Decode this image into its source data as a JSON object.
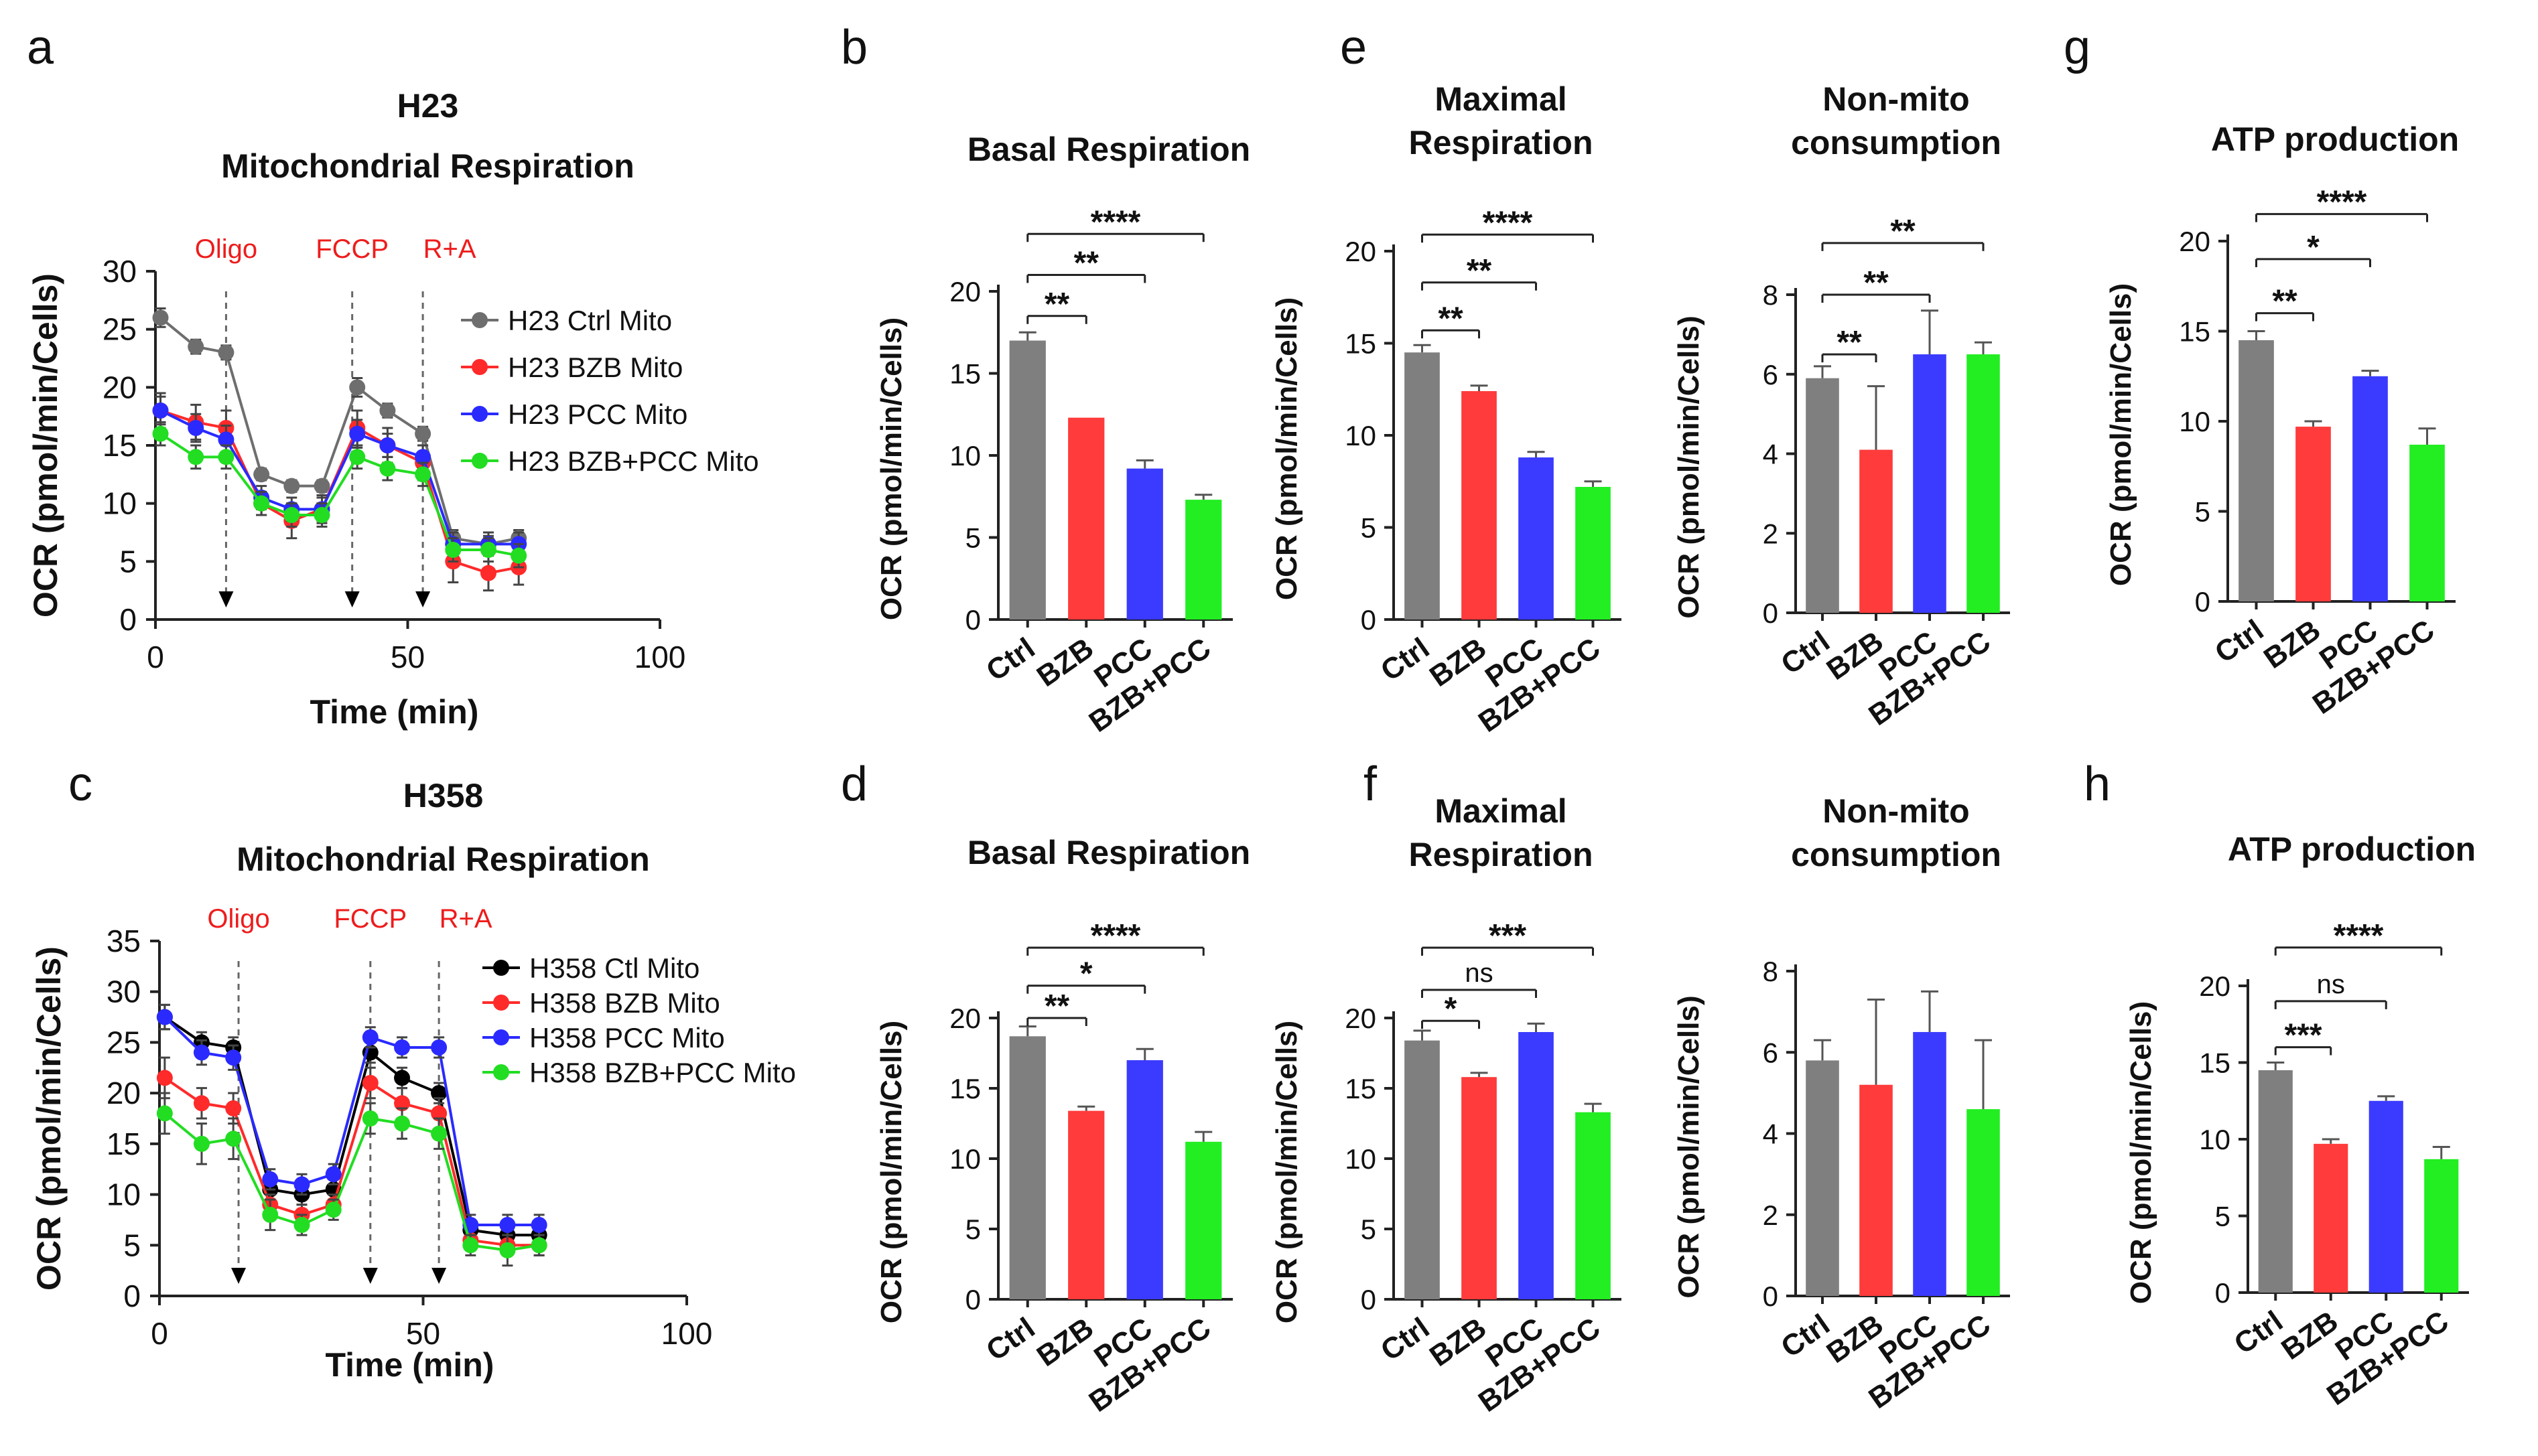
{
  "palette": {
    "gray": "#7f7f7f",
    "red": "#ff3b3b",
    "blue": "#3b3bff",
    "green": "#22ee22",
    "black": "#111111",
    "annotation": "#ee1c1c"
  },
  "chart_data": [
    {
      "id": "a",
      "panel": "a",
      "type": "line",
      "title": "H23",
      "subtitle": "Mitochondrial Respiration",
      "xlabel": "Time (min)",
      "ylabel": "OCR (pmol/min/Cells)",
      "xlim": [
        0,
        100
      ],
      "ylim": [
        0,
        30
      ],
      "xticks": [
        0,
        50,
        100
      ],
      "yticks": [
        0,
        5,
        10,
        15,
        20,
        25,
        30
      ],
      "injections": [
        {
          "label": "Oligo",
          "x": 14
        },
        {
          "label": "FCCP",
          "x": 39
        },
        {
          "label": "R+A",
          "x": 53
        }
      ],
      "x": [
        1,
        8,
        14,
        21,
        27,
        33,
        40,
        46,
        53,
        59,
        66,
        72
      ],
      "series": [
        {
          "name": "H23 Ctrl Mito",
          "color": "#6e6e6e",
          "values": [
            26,
            23.5,
            23,
            12.5,
            11.5,
            11.5,
            20,
            18,
            16,
            7,
            6.5,
            7
          ],
          "errors": [
            0.8,
            0.6,
            0.6,
            0.5,
            0.5,
            0.5,
            0.8,
            0.6,
            0.6,
            0.7,
            0.7,
            0.7
          ]
        },
        {
          "name": "H23 BZB Mito",
          "color": "#ff2a2a",
          "values": [
            18,
            17,
            16.5,
            10,
            8.5,
            9.5,
            16.5,
            15,
            13.5,
            5,
            4,
            4.5
          ],
          "errors": [
            1.5,
            1.5,
            1.5,
            1,
            1.5,
            1.2,
            1.5,
            1.5,
            1.5,
            1.8,
            1.5,
            1.5
          ]
        },
        {
          "name": "H23 PCC Mito",
          "color": "#2a2aff",
          "values": [
            18,
            16.5,
            15.5,
            10.5,
            9.5,
            9.5,
            16,
            15,
            14,
            6.5,
            6.5,
            6.5
          ],
          "errors": [
            1.2,
            1.2,
            1.2,
            1,
            1,
            1,
            1.2,
            1,
            1,
            1,
            1,
            1
          ]
        },
        {
          "name": "H23 BZB+PCC Mito",
          "color": "#22dd22",
          "values": [
            16,
            14,
            14,
            10,
            9,
            9,
            14,
            13,
            12.5,
            6,
            6,
            5.5
          ],
          "errors": [
            1,
            1,
            1,
            1,
            1,
            1,
            1,
            1,
            1,
            1,
            1,
            1
          ]
        }
      ]
    },
    {
      "id": "c",
      "panel": "c",
      "type": "line",
      "title": "H358",
      "subtitle": "Mitochondrial Respiration",
      "xlabel": "Time (min)",
      "ylabel": "OCR (pmol/min/Cells)",
      "xlim": [
        0,
        100
      ],
      "ylim": [
        0,
        35
      ],
      "xticks": [
        0,
        50,
        100
      ],
      "yticks": [
        0,
        5,
        10,
        15,
        20,
        25,
        30,
        35
      ],
      "injections": [
        {
          "label": "Oligo",
          "x": 15
        },
        {
          "label": "FCCP",
          "x": 40
        },
        {
          "label": "R+A",
          "x": 53
        }
      ],
      "x": [
        1,
        8,
        14,
        21,
        27,
        33,
        40,
        46,
        53,
        59,
        66,
        72
      ],
      "series": [
        {
          "name": "H358 Ctl Mito",
          "color": "#000000",
          "values": [
            27.5,
            25,
            24.5,
            10.5,
            10,
            10.5,
            24,
            21.5,
            20,
            6.5,
            6,
            6
          ],
          "errors": [
            1.2,
            1,
            1,
            1,
            1,
            1,
            1,
            1,
            1,
            1,
            1,
            1
          ]
        },
        {
          "name": "H358 BZB Mito",
          "color": "#ff2a2a",
          "values": [
            21.5,
            19,
            18.5,
            9,
            8,
            9,
            21,
            19,
            18,
            5.5,
            5,
            5
          ],
          "errors": [
            2,
            1.5,
            1.5,
            1,
            1,
            1,
            1.5,
            1.5,
            1.5,
            1,
            1,
            1
          ]
        },
        {
          "name": "H358 PCC Mito",
          "color": "#2a2aff",
          "values": [
            27.5,
            24,
            23.5,
            11.5,
            11,
            12,
            25.5,
            24.5,
            24.5,
            7,
            7,
            7
          ],
          "errors": [
            1.2,
            1.2,
            1.2,
            1,
            1,
            1,
            1,
            1,
            1,
            1,
            1,
            1
          ]
        },
        {
          "name": "H358 BZB+PCC Mito",
          "color": "#22dd22",
          "values": [
            18,
            15,
            15.5,
            8,
            7,
            8.5,
            17.5,
            17,
            16,
            5,
            4.5,
            5
          ],
          "errors": [
            2,
            2,
            2,
            1.5,
            1,
            1,
            1.5,
            1.5,
            1.5,
            1,
            1.5,
            1
          ]
        }
      ]
    },
    {
      "id": "b",
      "panel": "b",
      "type": "bar",
      "title": "Basal Respiration",
      "ylabel": "OCR (pmol/min/Cells)",
      "categories": [
        "Ctrl",
        "BZB",
        "PCC",
        "BZB+PCC"
      ],
      "values": [
        17,
        12.3,
        9.2,
        7.3
      ],
      "errors": [
        0.5,
        0,
        0.5,
        0.3
      ],
      "ylim": [
        0,
        20
      ],
      "yticks": [
        0,
        5,
        10,
        15,
        20
      ],
      "significance": [
        {
          "from": 0,
          "to": 1,
          "label": "**",
          "y": 18.5
        },
        {
          "from": 0,
          "to": 2,
          "label": "**",
          "y": 21
        },
        {
          "from": 0,
          "to": 3,
          "label": "****",
          "y": 23.5
        }
      ]
    },
    {
      "id": "e1",
      "panel": "e",
      "type": "bar",
      "title": "Maximal Respiration",
      "ylabel": "OCR (pmol/min/Cells)",
      "categories": [
        "Ctrl",
        "BZB",
        "PCC",
        "BZB+PCC"
      ],
      "values": [
        14.5,
        12.4,
        8.8,
        7.2
      ],
      "errors": [
        0.4,
        0.3,
        0.3,
        0.3
      ],
      "ylim": [
        0,
        20
      ],
      "yticks": [
        0,
        5,
        10,
        15,
        20
      ],
      "significance": [
        {
          "from": 0,
          "to": 1,
          "label": "**",
          "y": 15.7
        },
        {
          "from": 0,
          "to": 2,
          "label": "**",
          "y": 18.3
        },
        {
          "from": 0,
          "to": 3,
          "label": "****",
          "y": 20.9
        }
      ]
    },
    {
      "id": "e2",
      "panel": "e",
      "type": "bar",
      "title": "Non-mito consumption",
      "ylabel": "OCR (pmol/min/Cells)",
      "categories": [
        "Ctrl",
        "BZB",
        "PCC",
        "BZB+PCC"
      ],
      "values": [
        5.9,
        4.1,
        6.5,
        6.5
      ],
      "errors": [
        0.3,
        1.6,
        1.1,
        0.3
      ],
      "ylim": [
        0,
        8
      ],
      "yticks": [
        0,
        2,
        4,
        6,
        8
      ],
      "significance": [
        {
          "from": 0,
          "to": 1,
          "label": "**",
          "y": 6.5
        },
        {
          "from": 0,
          "to": 2,
          "label": "**",
          "y": 8
        },
        {
          "from": 0,
          "to": 3,
          "label": "**",
          "y": 9.3
        }
      ]
    },
    {
      "id": "g",
      "panel": "g",
      "type": "bar",
      "title": "ATP production",
      "ylabel": "OCR (pmol/min/Cells)",
      "categories": [
        "Ctrl",
        "BZB",
        "PCC",
        "BZB+PCC"
      ],
      "values": [
        14.5,
        9.7,
        12.5,
        8.7
      ],
      "errors": [
        0.5,
        0.3,
        0.3,
        0.9
      ],
      "ylim": [
        0,
        20
      ],
      "yticks": [
        0,
        5,
        10,
        15,
        20
      ],
      "significance": [
        {
          "from": 0,
          "to": 1,
          "label": "**",
          "y": 16
        },
        {
          "from": 0,
          "to": 2,
          "label": "*",
          "y": 19
        },
        {
          "from": 0,
          "to": 3,
          "label": "****",
          "y": 21.5
        }
      ]
    },
    {
      "id": "d",
      "panel": "d",
      "type": "bar",
      "title": "Basal Respiration",
      "ylabel": "OCR (pmol/min/Cells)",
      "categories": [
        "Ctrl",
        "BZB",
        "PCC",
        "BZB+PCC"
      ],
      "values": [
        18.7,
        13.4,
        17,
        11.2
      ],
      "errors": [
        0.7,
        0.3,
        0.8,
        0.7
      ],
      "ylim": [
        0,
        20
      ],
      "yticks": [
        0,
        5,
        10,
        15,
        20
      ],
      "significance": [
        {
          "from": 0,
          "to": 1,
          "label": "**",
          "y": 20
        },
        {
          "from": 0,
          "to": 2,
          "label": "*",
          "y": 22.3
        },
        {
          "from": 0,
          "to": 3,
          "label": "****",
          "y": 25
        }
      ]
    },
    {
      "id": "f1",
      "panel": "f",
      "type": "bar",
      "title": "Maximal Respiration",
      "ylabel": "OCR (pmol/min/Cells)",
      "categories": [
        "Ctrl",
        "BZB",
        "PCC",
        "BZB+PCC"
      ],
      "values": [
        18.4,
        15.8,
        19,
        13.3
      ],
      "errors": [
        0.7,
        0.3,
        0.6,
        0.6
      ],
      "ylim": [
        0,
        20
      ],
      "yticks": [
        0,
        5,
        10,
        15,
        20
      ],
      "significance": [
        {
          "from": 0,
          "to": 1,
          "label": "*",
          "y": 19.8
        },
        {
          "from": 0,
          "to": 2,
          "label": "ns",
          "y": 22
        },
        {
          "from": 0,
          "to": 3,
          "label": "***",
          "y": 25
        }
      ]
    },
    {
      "id": "f2",
      "panel": "f",
      "type": "bar",
      "title": "Non-mito consumption",
      "ylabel": "OCR (pmol/min/Cells)",
      "categories": [
        "Ctrl",
        "BZB",
        "PCC",
        "BZB+PCC"
      ],
      "values": [
        5.8,
        5.2,
        6.5,
        4.6
      ],
      "errors": [
        0.5,
        2.1,
        1,
        1.7
      ],
      "ylim": [
        0,
        8
      ],
      "yticks": [
        0,
        2,
        4,
        6,
        8
      ],
      "significance": []
    },
    {
      "id": "h",
      "panel": "h",
      "type": "bar",
      "title": "ATP production",
      "ylabel": "OCR (pmol/min/Cells)",
      "categories": [
        "Ctrl",
        "BZB",
        "PCC",
        "BZB+PCC"
      ],
      "values": [
        14.5,
        9.7,
        12.5,
        8.7
      ],
      "errors": [
        0.5,
        0.3,
        0.3,
        0.8
      ],
      "ylim": [
        0,
        20
      ],
      "yticks": [
        0,
        5,
        10,
        15,
        20
      ],
      "significance": [
        {
          "from": 0,
          "to": 1,
          "label": "***",
          "y": 16
        },
        {
          "from": 0,
          "to": 2,
          "label": "ns",
          "y": 19
        },
        {
          "from": 0,
          "to": 3,
          "label": "****",
          "y": 22.5
        }
      ]
    }
  ],
  "panel_letters": [
    "a",
    "b",
    "e",
    "g",
    "c",
    "d",
    "f",
    "h"
  ]
}
